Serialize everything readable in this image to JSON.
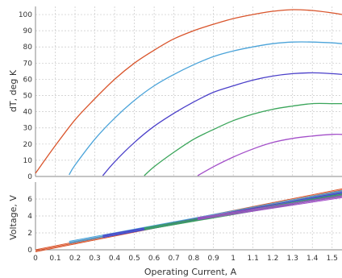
{
  "chart_data": [
    {
      "type": "line",
      "panel": "top",
      "ylabel": "dT, deg K",
      "ylim": [
        0,
        105
      ],
      "yticks": [
        0,
        10,
        20,
        30,
        40,
        50,
        60,
        70,
        80,
        90,
        100
      ],
      "xlim": [
        0,
        1.55
      ],
      "grid": true,
      "series": [
        {
          "color": "#d9542b",
          "x": [
            0.0,
            0.1,
            0.2,
            0.3,
            0.4,
            0.5,
            0.6,
            0.7,
            0.8,
            0.9,
            1.0,
            1.1,
            1.2,
            1.3,
            1.4,
            1.5,
            1.55
          ],
          "y": [
            2,
            19,
            35,
            48,
            60,
            70,
            78,
            85,
            90,
            94,
            97.5,
            100,
            102,
            103,
            102.5,
            101,
            100
          ]
        },
        {
          "color": "#4aa3d9",
          "x": [
            0.17,
            0.2,
            0.3,
            0.4,
            0.5,
            0.6,
            0.7,
            0.8,
            0.9,
            1.0,
            1.1,
            1.2,
            1.3,
            1.4,
            1.5,
            1.55
          ],
          "y": [
            1,
            7,
            23,
            36,
            47,
            56,
            63,
            69,
            74,
            77.5,
            80,
            82,
            83,
            83,
            82.5,
            82
          ]
        },
        {
          "color": "#4a3fc9",
          "x": [
            0.34,
            0.4,
            0.5,
            0.6,
            0.7,
            0.8,
            0.9,
            1.0,
            1.1,
            1.2,
            1.3,
            1.4,
            1.5,
            1.55
          ],
          "y": [
            0.5,
            9,
            21,
            31,
            39,
            46,
            52,
            56,
            59.5,
            62,
            63.5,
            64,
            63.5,
            63
          ]
        },
        {
          "color": "#3aa55a",
          "x": [
            0.55,
            0.6,
            0.7,
            0.8,
            0.9,
            1.0,
            1.1,
            1.2,
            1.3,
            1.4,
            1.5,
            1.55
          ],
          "y": [
            0.5,
            6,
            15,
            23,
            29,
            34.5,
            38.5,
            41.5,
            43.5,
            45,
            45,
            45
          ]
        },
        {
          "color": "#a34fc9",
          "x": [
            0.82,
            0.9,
            1.0,
            1.1,
            1.2,
            1.3,
            1.4,
            1.5,
            1.55
          ],
          "y": [
            0.5,
            6,
            12,
            17,
            21,
            23.5,
            25,
            26,
            26
          ]
        }
      ]
    },
    {
      "type": "line",
      "panel": "bottom",
      "xlabel": "Operating Current, A",
      "ylabel": "Voltage, V",
      "ylim": [
        0,
        8
      ],
      "yticks": [
        0,
        2,
        4,
        6
      ],
      "xlim": [
        0,
        1.55
      ],
      "xticks": [
        "0",
        "0.1",
        "0.2",
        "0.3",
        "0.4",
        "0.5",
        "0.6",
        "0.7",
        "0.8",
        "0.9",
        "1",
        "1.1",
        "1.2",
        "1.3",
        "1.4",
        "1.5"
      ],
      "grid": true,
      "series": [
        {
          "color": "#d9542b",
          "x": [
            0,
            1.55
          ],
          "y": [
            0,
            7.2
          ]
        },
        {
          "color": "#4aa3d9",
          "x": [
            0.17,
            1.55
          ],
          "y": [
            1.0,
            7.0
          ]
        },
        {
          "color": "#4a3fc9",
          "x": [
            0.34,
            1.55
          ],
          "y": [
            1.7,
            6.8
          ]
        },
        {
          "color": "#3aa55a",
          "x": [
            0.55,
            1.55
          ],
          "y": [
            2.6,
            6.6
          ]
        },
        {
          "color": "#a34fc9",
          "x": [
            0.82,
            1.55
          ],
          "y": [
            3.8,
            6.4
          ]
        }
      ]
    }
  ]
}
